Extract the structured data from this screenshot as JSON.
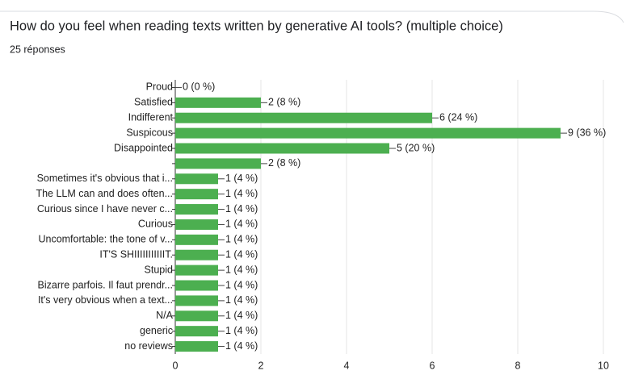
{
  "chart_data": {
    "type": "bar",
    "orientation": "horizontal",
    "title": "How do you feel when reading texts written by generative AI tools? (multiple choice)",
    "subtitle": "25 réponses",
    "categories": [
      "Proud",
      "Satisfied",
      "Indifferent",
      "Suspicous",
      "Disappointed",
      null,
      "Sometimes it's obvious that i...",
      "The LLM can and does often...",
      "Curious since I have never c...",
      "Curious",
      "Uncomfortable: the tone of v...",
      "IT'S SHIIIIIIIIIIIT.",
      "Stupid",
      "Bizarre parfois. Il faut prendr...",
      "It's very obvious when a text...",
      "N/A",
      "generic",
      "no reviews"
    ],
    "values": [
      0,
      2,
      6,
      9,
      5,
      2,
      1,
      1,
      1,
      1,
      1,
      1,
      1,
      1,
      1,
      1,
      1,
      1
    ],
    "value_labels": [
      "0 (0 %)",
      "2 (8 %)",
      "6 (24 %)",
      "9 (36 %)",
      "5 (20 %)",
      "2 (8 %)",
      "1 (4 %)",
      "1 (4 %)",
      "1 (4 %)",
      "1 (4 %)",
      "1 (4 %)",
      "1 (4 %)",
      "1 (4 %)",
      "1 (4 %)",
      "1 (4 %)",
      "1 (4 %)",
      "1 (4 %)",
      "1 (4 %)"
    ],
    "color": "#4caf50",
    "xlim": [
      0,
      10
    ],
    "xticks": [
      0,
      2,
      4,
      6,
      8,
      10
    ],
    "grid": true
  }
}
